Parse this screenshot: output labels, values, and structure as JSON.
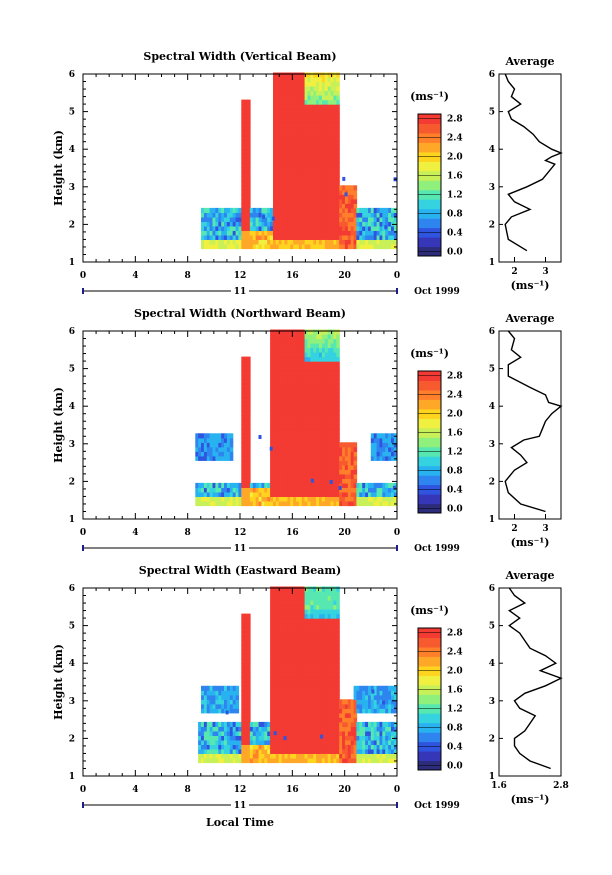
{
  "colorbar_unit": "(ms⁻¹)",
  "colorbar_ticks": [
    "0.0",
    "0.4",
    "0.8",
    "1.2",
    "1.6",
    "2.0",
    "2.4",
    "2.8"
  ],
  "colorbar_colors": [
    "#2c2c7a",
    "#3636b8",
    "#2f55e0",
    "#2f85f0",
    "#28b3f0",
    "#35d3df",
    "#56e8b0",
    "#8ff07c",
    "#c8f058",
    "#f0f040",
    "#ffd41e",
    "#ffa828",
    "#ff7f2a",
    "#f85a30",
    "#f33a33"
  ],
  "panel_y_ticks": [
    "1",
    "2",
    "3",
    "4",
    "5",
    "6"
  ],
  "time_ticks": [
    "0",
    "4",
    "8",
    "12",
    "16",
    "20",
    "0"
  ],
  "day_label": "11",
  "month_label": "Oct 1999",
  "ylabel": "Height (km)",
  "avg_title": "Average",
  "avg_xlabel": "(ms⁻¹)",
  "xlabel_bottom": "Local Time",
  "chart_data": [
    {
      "type": "heatmap",
      "title": "Spectral Width (Vertical Beam)",
      "x_range": [
        0,
        24
      ],
      "y_range": [
        1,
        6
      ],
      "avg_xticks": [
        "2",
        "3"
      ],
      "avg_x_range": [
        1.5,
        3.5
      ],
      "average_profile": [
        [
          1.3,
          2.4
        ],
        [
          1.6,
          1.8
        ],
        [
          2.0,
          1.7
        ],
        [
          2.2,
          1.9
        ],
        [
          2.4,
          2.5
        ],
        [
          2.6,
          2.0
        ],
        [
          2.8,
          1.8
        ],
        [
          3.0,
          2.4
        ],
        [
          3.2,
          2.9
        ],
        [
          3.4,
          3.1
        ],
        [
          3.6,
          3.3
        ],
        [
          3.7,
          3.0
        ],
        [
          3.8,
          3.2
        ],
        [
          3.9,
          3.5
        ],
        [
          4.0,
          3.2
        ],
        [
          4.2,
          2.8
        ],
        [
          4.4,
          2.6
        ],
        [
          4.6,
          2.3
        ],
        [
          4.8,
          1.9
        ],
        [
          5.0,
          1.8
        ],
        [
          5.2,
          2.2
        ],
        [
          5.4,
          1.9
        ],
        [
          5.6,
          2.0
        ],
        [
          5.8,
          1.8
        ],
        [
          6.0,
          1.7
        ]
      ]
    },
    {
      "type": "heatmap",
      "title": "Spectral Width (Northward Beam)",
      "x_range": [
        0,
        24
      ],
      "y_range": [
        1,
        6
      ],
      "avg_xticks": [
        "2",
        "3"
      ],
      "avg_x_range": [
        1.5,
        3.5
      ],
      "average_profile": [
        [
          1.2,
          3.0
        ],
        [
          1.4,
          2.2
        ],
        [
          1.7,
          1.8
        ],
        [
          2.0,
          1.7
        ],
        [
          2.3,
          2.0
        ],
        [
          2.5,
          2.4
        ],
        [
          2.7,
          2.2
        ],
        [
          2.9,
          1.9
        ],
        [
          3.1,
          2.3
        ],
        [
          3.2,
          2.8
        ],
        [
          3.4,
          2.9
        ],
        [
          3.6,
          3.0
        ],
        [
          3.8,
          3.2
        ],
        [
          4.0,
          3.5
        ],
        [
          4.1,
          3.1
        ],
        [
          4.3,
          3.0
        ],
        [
          4.5,
          2.5
        ],
        [
          4.8,
          1.8
        ],
        [
          5.1,
          1.8
        ],
        [
          5.3,
          2.2
        ],
        [
          5.5,
          1.9
        ],
        [
          5.8,
          2.0
        ],
        [
          6.0,
          1.8
        ]
      ]
    },
    {
      "type": "heatmap",
      "title": "Spectral Width (Eastward Beam)",
      "x_range": [
        0,
        24
      ],
      "y_range": [
        1,
        6
      ],
      "avg_xticks": [
        "1.6",
        "2.8"
      ],
      "avg_x_range": [
        1.6,
        2.8
      ],
      "average_profile": [
        [
          1.2,
          2.6
        ],
        [
          1.4,
          2.2
        ],
        [
          1.6,
          2.0
        ],
        [
          1.8,
          1.9
        ],
        [
          2.0,
          1.9
        ],
        [
          2.2,
          2.1
        ],
        [
          2.4,
          2.2
        ],
        [
          2.6,
          2.3
        ],
        [
          2.8,
          2.0
        ],
        [
          3.0,
          1.9
        ],
        [
          3.2,
          2.1
        ],
        [
          3.4,
          2.5
        ],
        [
          3.6,
          2.8
        ],
        [
          3.8,
          2.4
        ],
        [
          4.0,
          2.7
        ],
        [
          4.2,
          2.5
        ],
        [
          4.4,
          2.2
        ],
        [
          4.6,
          2.1
        ],
        [
          4.8,
          2.0
        ],
        [
          5.0,
          1.8
        ],
        [
          5.2,
          2.0
        ],
        [
          5.4,
          1.8
        ],
        [
          5.6,
          2.1
        ],
        [
          5.8,
          1.9
        ],
        [
          6.0,
          1.8
        ]
      ]
    }
  ]
}
